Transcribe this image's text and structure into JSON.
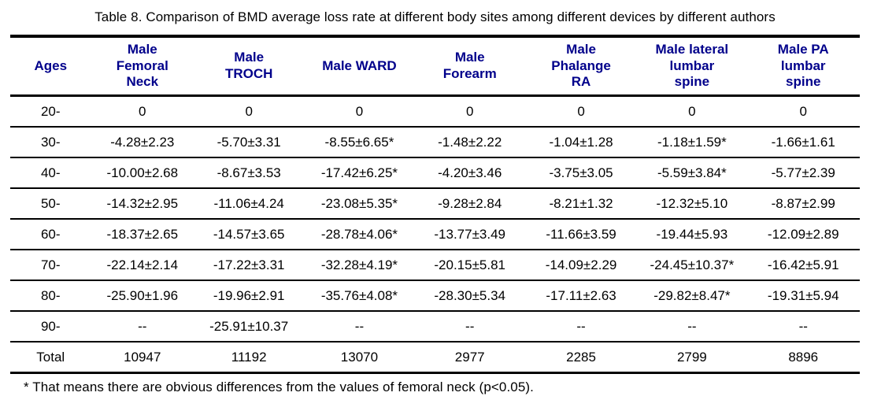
{
  "title": "Table 8. Comparison of BMD average loss rate at different body sites among different devices by different authors",
  "footnote": "* That means there are obvious differences from the values of femoral neck (p<0.05).",
  "colors": {
    "header_text": "#00008B",
    "body_text": "#000000",
    "rule": "#000000",
    "background": "#ffffff"
  },
  "table": {
    "columns": [
      "Ages",
      "Male\nFemoral\nNeck",
      "Male\nTROCH",
      "Male WARD",
      "Male\nForearm",
      "Male\nPhalange\nRA",
      "Male lateral\nlumbar\nspine",
      "Male PA\nlumbar\nspine"
    ],
    "rows": [
      {
        "age": "20-",
        "values": [
          "0",
          "0",
          "0",
          "0",
          "0",
          "0",
          "0"
        ]
      },
      {
        "age": "30-",
        "values": [
          "-4.28±2.23",
          "-5.70±3.31",
          "-8.55±6.65*",
          "-1.48±2.22",
          "-1.04±1.28",
          "-1.18±1.59*",
          "-1.66±1.61"
        ]
      },
      {
        "age": "40-",
        "values": [
          "-10.00±2.68",
          "-8.67±3.53",
          "-17.42±6.25*",
          "-4.20±3.46",
          "-3.75±3.05",
          "-5.59±3.84*",
          "-5.77±2.39"
        ]
      },
      {
        "age": "50-",
        "values": [
          "-14.32±2.95",
          "-11.06±4.24",
          "-23.08±5.35*",
          "-9.28±2.84",
          "-8.21±1.32",
          "-12.32±5.10",
          "-8.87±2.99"
        ]
      },
      {
        "age": "60-",
        "values": [
          "-18.37±2.65",
          "-14.57±3.65",
          "-28.78±4.06*",
          "-13.77±3.49",
          "-11.66±3.59",
          "-19.44±5.93",
          "-12.09±2.89"
        ]
      },
      {
        "age": "70-",
        "values": [
          "-22.14±2.14",
          "-17.22±3.31",
          "-32.28±4.19*",
          "-20.15±5.81",
          "-14.09±2.29",
          "-24.45±10.37*",
          "-16.42±5.91"
        ]
      },
      {
        "age": "80-",
        "values": [
          "-25.90±1.96",
          "-19.96±2.91",
          "-35.76±4.08*",
          "-28.30±5.34",
          "-17.11±2.63",
          "-29.82±8.47*",
          "-19.31±5.94"
        ]
      },
      {
        "age": "90-",
        "values": [
          "--",
          "-25.91±10.37",
          "--",
          "--",
          "--",
          "--",
          "--"
        ]
      },
      {
        "age": "Total",
        "values": [
          "10947",
          "11192",
          "13070",
          "2977",
          "2285",
          "2799",
          "8896"
        ]
      }
    ]
  }
}
